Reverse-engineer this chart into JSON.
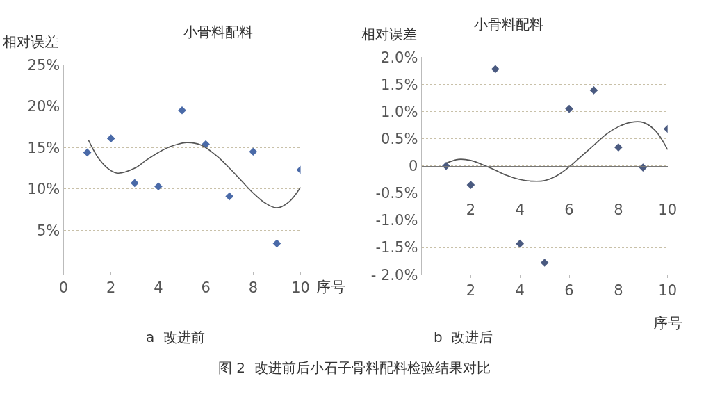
{
  "chart_data": [
    {
      "type": "scatter",
      "title": "小骨料配料",
      "xlabel": "序号",
      "ylabel": "相对误差",
      "xlim": [
        0,
        10
      ],
      "xticks": [
        0,
        2,
        4,
        6,
        8,
        10
      ],
      "ylim": [
        0,
        25
      ],
      "yticks": [
        {
          "value": 5,
          "label": "5%"
        },
        {
          "value": 10,
          "label": "10%"
        },
        {
          "value": 15,
          "label": "15%"
        },
        {
          "value": 20,
          "label": "20%"
        },
        {
          "value": 25,
          "label": "25%"
        }
      ],
      "grid": "y",
      "series": [
        {
          "marker": "diamond",
          "color": "#4a6aa8",
          "x": [
            1,
            2,
            3,
            4,
            5,
            6,
            7,
            8,
            9,
            10
          ],
          "values": [
            14.4,
            16.1,
            10.7,
            10.3,
            19.5,
            15.4,
            9.1,
            14.5,
            3.4,
            12.3
          ]
        },
        {
          "type": "line",
          "color": "#555555",
          "x": [
            1.05,
            1.5,
            2,
            2.3,
            3,
            3.5,
            4,
            4.5,
            5.2,
            5.8,
            6.5,
            7,
            7.5,
            8,
            8.5,
            9,
            9.5,
            10
          ],
          "values": [
            15.9,
            13.6,
            12.2,
            11.9,
            12.5,
            13.5,
            14.4,
            15.1,
            15.6,
            15.3,
            13.9,
            12.5,
            11.0,
            9.5,
            8.3,
            7.7,
            8.4,
            10.2
          ]
        }
      ],
      "annotations": [
        "a  改进前",
        "图 2  改进前后小石子骨料配料检验结果对比"
      ]
    },
    {
      "type": "scatter",
      "title": "小骨料配料",
      "xlabel": "序号",
      "ylabel": "相对误差",
      "xlim": [
        0,
        10
      ],
      "xticks": [
        2,
        4,
        6,
        8,
        10
      ],
      "x2lim": [
        0,
        10
      ],
      "x2ticks": [
        2,
        4,
        6,
        8,
        10
      ],
      "ylim": [
        -2,
        2
      ],
      "yticks": [
        {
          "value": -2,
          "label": "- 2.0%"
        },
        {
          "value": -1.5,
          "label": "-1.5%"
        },
        {
          "value": -1,
          "label": "-1.0%"
        },
        {
          "value": -0.5,
          "label": "-0.5%"
        },
        {
          "value": 0,
          "label": "0"
        },
        {
          "value": 0.5,
          "label": "0.5%"
        },
        {
          "value": 1,
          "label": "1.0%"
        },
        {
          "value": 1.5,
          "label": "1.5%"
        },
        {
          "value": 2,
          "label": "2.0%"
        }
      ],
      "grid": "y",
      "series": [
        {
          "marker": "diamond",
          "color": "#4a5a80",
          "x": [
            1,
            2,
            3,
            4,
            5,
            6,
            7,
            8,
            9,
            10
          ],
          "values": [
            0,
            -0.35,
            1.78,
            -1.43,
            -1.78,
            1.05,
            1.39,
            0.34,
            -0.03,
            0.68
          ]
        },
        {
          "type": "line",
          "color": "#555555",
          "x": [
            1,
            1.5,
            2,
            2.5,
            3,
            3.5,
            4,
            4.5,
            5,
            5.5,
            6,
            6.5,
            7,
            7.5,
            8,
            8.5,
            9,
            9.5,
            10
          ],
          "values": [
            0.05,
            0.12,
            0.1,
            0.02,
            -0.08,
            -0.18,
            -0.25,
            -0.28,
            -0.27,
            -0.18,
            -0.02,
            0.18,
            0.38,
            0.58,
            0.72,
            0.8,
            0.8,
            0.65,
            0.3
          ]
        }
      ],
      "annotations": [
        "b  改进后"
      ]
    }
  ]
}
